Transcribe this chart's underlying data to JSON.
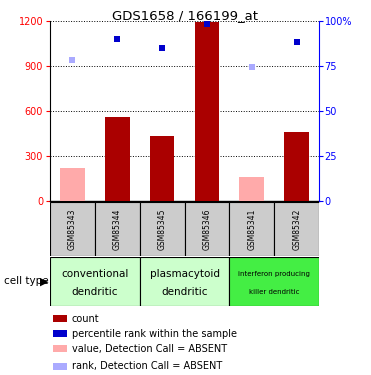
{
  "title": "GDS1658 / 166199_at",
  "samples": [
    "GSM85343",
    "GSM85344",
    "GSM85345",
    "GSM85346",
    "GSM85341",
    "GSM85342"
  ],
  "bar_values": [
    null,
    560,
    430,
    1190,
    null,
    460
  ],
  "bar_absent_values": [
    220,
    null,
    null,
    null,
    160,
    null
  ],
  "rank_values_pct": [
    null,
    90,
    85,
    98,
    null,
    88
  ],
  "rank_absent_values_pct": [
    78,
    null,
    null,
    null,
    74,
    null
  ],
  "ylim_left": [
    0,
    1200
  ],
  "ylim_right": [
    0,
    100
  ],
  "yticks_left": [
    0,
    300,
    600,
    900,
    1200
  ],
  "yticks_right": [
    0,
    25,
    50,
    75,
    100
  ],
  "bar_color": "#aa0000",
  "bar_absent_color": "#ffaaaa",
  "rank_color": "#0000cc",
  "rank_absent_color": "#aaaaff",
  "cell_types": [
    {
      "label_top": "conventional",
      "label_bot": "dendritic",
      "color": "#ccffcc",
      "span": [
        0,
        2
      ]
    },
    {
      "label_top": "plasmacytoid",
      "label_bot": "dendritic",
      "color": "#ccffcc",
      "span": [
        2,
        4
      ]
    },
    {
      "label_top": "interferon producing",
      "label_bot": "killer dendritic",
      "color": "#44ee44",
      "span": [
        4,
        6
      ]
    }
  ],
  "legend_items": [
    {
      "color": "#aa0000",
      "label": "count"
    },
    {
      "color": "#0000cc",
      "label": "percentile rank within the sample"
    },
    {
      "color": "#ffaaaa",
      "label": "value, Detection Call = ABSENT"
    },
    {
      "color": "#aaaaff",
      "label": "rank, Detection Call = ABSENT"
    }
  ]
}
